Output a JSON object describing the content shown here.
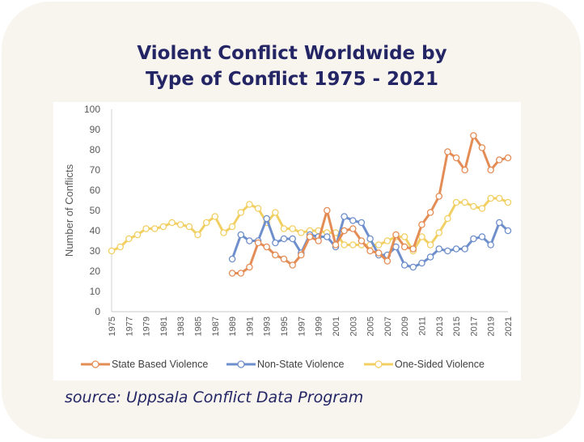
{
  "title_line1": "Violent Conflict Worldwide by",
  "title_line2": "Type of Conflict 1975 - 2021",
  "source": "source: Uppsala Conflict Data Program",
  "chart_data": {
    "type": "line",
    "title": "Violent Conflict Worldwide by Type of Conflict 1975 - 2021",
    "xlabel": "",
    "ylabel": "Number of Conflicts",
    "ylim": [
      0,
      100
    ],
    "yticks": [
      0,
      10,
      20,
      30,
      40,
      50,
      60,
      70,
      80,
      90,
      100
    ],
    "grid": false,
    "legend": "bottom",
    "x": [
      1975,
      1976,
      1977,
      1978,
      1979,
      1980,
      1981,
      1982,
      1983,
      1984,
      1985,
      1986,
      1987,
      1988,
      1989,
      1990,
      1991,
      1992,
      1993,
      1994,
      1995,
      1996,
      1997,
      1998,
      1999,
      2000,
      2001,
      2002,
      2003,
      2004,
      2005,
      2006,
      2007,
      2008,
      2009,
      2010,
      2011,
      2012,
      2013,
      2014,
      2015,
      2016,
      2017,
      2018,
      2019,
      2020,
      2021
    ],
    "xtick_labels": [
      "1975",
      "1977",
      "1979",
      "1981",
      "1983",
      "1985",
      "1987",
      "1989",
      "1991",
      "1993",
      "1995",
      "1997",
      "1999",
      "2001",
      "2003",
      "2005",
      "2007",
      "2009",
      "2011",
      "2013",
      "2015",
      "2017",
      "2019",
      "2021"
    ],
    "series": [
      {
        "name": "State Based Violence",
        "color": "#e48c55",
        "values": [
          null,
          null,
          null,
          null,
          null,
          null,
          null,
          null,
          null,
          null,
          null,
          null,
          null,
          null,
          19,
          19,
          22,
          34,
          32,
          28,
          26,
          23,
          28,
          37,
          35,
          50,
          33,
          40,
          41,
          35,
          30,
          29,
          25,
          38,
          32,
          31,
          43,
          49,
          57,
          79,
          76,
          70,
          87,
          81,
          70,
          75,
          76
        ]
      },
      {
        "name": "Non-State Violence",
        "color": "#6e8fcb",
        "values": [
          null,
          null,
          null,
          null,
          null,
          null,
          null,
          null,
          null,
          null,
          null,
          null,
          null,
          null,
          26,
          38,
          35,
          35,
          46,
          34,
          36,
          36,
          29,
          38,
          37,
          37,
          32,
          47,
          45,
          44,
          36,
          28,
          28,
          32,
          23,
          22,
          24,
          27,
          31,
          30,
          31,
          31,
          36,
          37,
          33,
          44,
          40
        ]
      },
      {
        "name": "One-Sided Violence",
        "color": "#f2cf63",
        "values": [
          30,
          32,
          36,
          38,
          41,
          41,
          42,
          44,
          43,
          42,
          38,
          44,
          47,
          39,
          42,
          49,
          53,
          51,
          44,
          49,
          41,
          41,
          39,
          40,
          40,
          39,
          39,
          33,
          33,
          33,
          33,
          33,
          35,
          37,
          37,
          30,
          37,
          33,
          39,
          46,
          54,
          54,
          52,
          51,
          56,
          56,
          54
        ]
      }
    ]
  }
}
